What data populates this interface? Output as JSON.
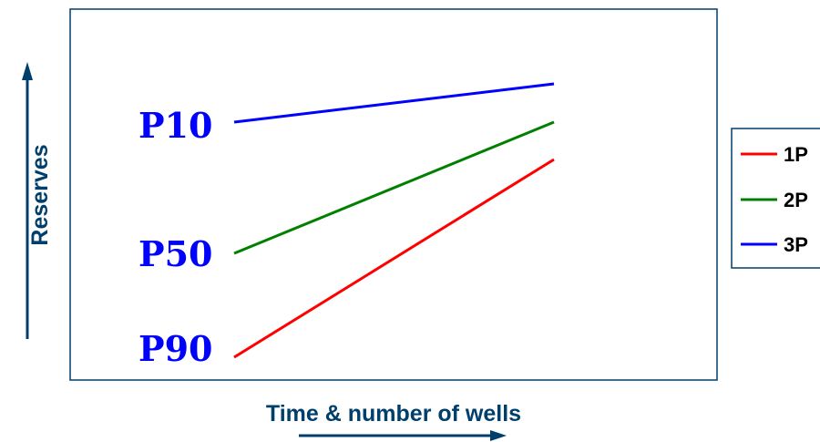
{
  "chart_data": {
    "type": "line",
    "xlabel": "Time & number of wells",
    "ylabel": "Reserves",
    "y_level_labels": [
      "P10",
      "P50",
      "P90"
    ],
    "series": [
      {
        "name": "1P",
        "start_level": "P90",
        "rise": "steep"
      },
      {
        "name": "2P",
        "start_level": "P50",
        "rise": "moderate"
      },
      {
        "name": "3P",
        "start_level": "P10",
        "rise": "slight"
      }
    ],
    "legend": {
      "position": "right"
    },
    "grid": false
  },
  "colors": {
    "1P": "#ff0000",
    "2P": "#008000",
    "3P": "#0000ff",
    "axis_text": "#003f6b",
    "arrow": "#003f6b",
    "frame": "#003f6b",
    "plabel": "#0000ff"
  }
}
